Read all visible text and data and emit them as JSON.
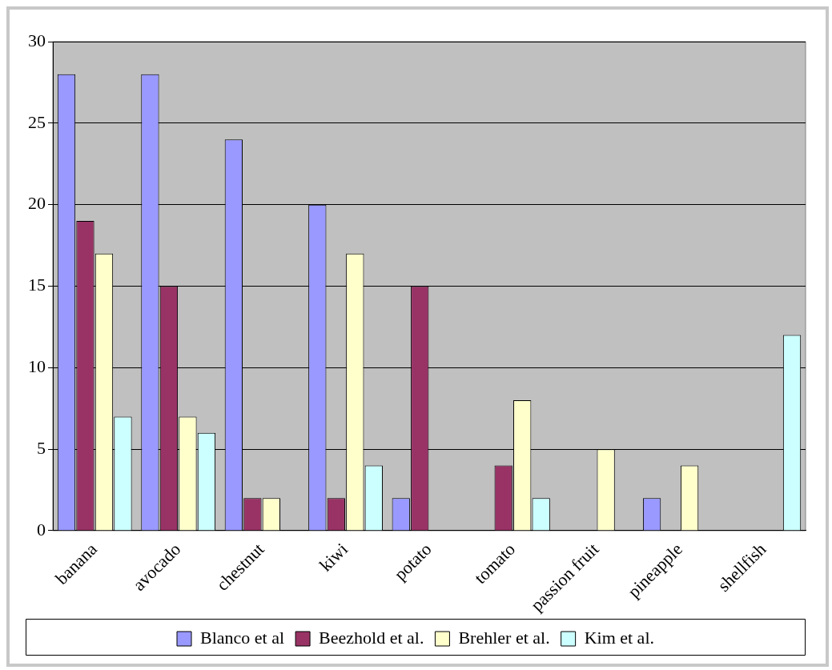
{
  "chart_data": {
    "type": "bar",
    "categories": [
      "banana",
      "avocado",
      "chestnut",
      "kiwi",
      "potato",
      "tomato",
      "passion fruit",
      "pineapple",
      "shellfish"
    ],
    "series": [
      {
        "name": "Blanco et al",
        "color": "#9999ff",
        "values": [
          28,
          28,
          24,
          20,
          2,
          null,
          null,
          2,
          null
        ]
      },
      {
        "name": "Beezhold et al.",
        "color": "#993366",
        "values": [
          19,
          15,
          2,
          2,
          15,
          4,
          null,
          null,
          null
        ]
      },
      {
        "name": "Brehler et al.",
        "color": "#ffffcc",
        "values": [
          17,
          7,
          2,
          17,
          null,
          8,
          5,
          4,
          null
        ]
      },
      {
        "name": "Kim et al.",
        "color": "#ccffff",
        "values": [
          7,
          6,
          null,
          4,
          null,
          2,
          null,
          null,
          12
        ]
      }
    ],
    "ylim": [
      0,
      30
    ],
    "yticks": [
      0,
      5,
      10,
      15,
      20,
      25,
      30
    ],
    "grid": "y",
    "legend": "bottom"
  }
}
